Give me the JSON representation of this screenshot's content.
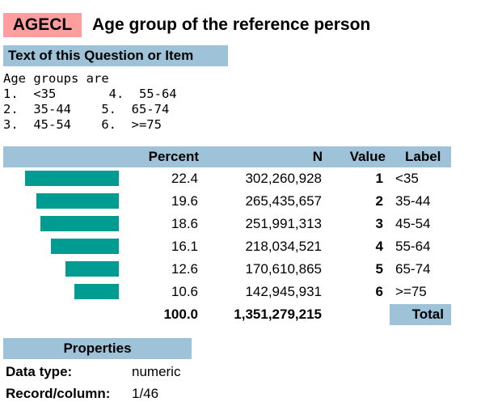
{
  "variable": {
    "code": "AGECL",
    "title": "Age group of the reference person"
  },
  "question": {
    "heading": "Text of this Question or Item",
    "lines": [
      "Age groups are",
      "1.  <35       4.  55-64",
      "2.  35-44    5.  65-74",
      "3.  45-54    6.  >=75"
    ]
  },
  "table": {
    "headers": {
      "percent": "Percent",
      "n": "N",
      "value": "Value",
      "label": "Label"
    },
    "rows": [
      {
        "percent": "22.4",
        "percent_num": 22.4,
        "n": "302,260,928",
        "value": "1",
        "label": "<35"
      },
      {
        "percent": "19.6",
        "percent_num": 19.6,
        "n": "265,435,657",
        "value": "2",
        "label": "35-44"
      },
      {
        "percent": "18.6",
        "percent_num": 18.6,
        "n": "251,991,313",
        "value": "3",
        "label": "45-54"
      },
      {
        "percent": "16.1",
        "percent_num": 16.1,
        "n": "218,034,521",
        "value": "4",
        "label": "55-64"
      },
      {
        "percent": "12.6",
        "percent_num": 12.6,
        "n": "170,610,865",
        "value": "5",
        "label": "65-74"
      },
      {
        "percent": "10.6",
        "percent_num": 10.6,
        "n": "142,945,931",
        "value": "6",
        "label": ">=75"
      }
    ],
    "total": {
      "percent": "100.0",
      "n": "1,351,279,215",
      "label": "Total"
    },
    "bar_color": "#009b91"
  },
  "properties": {
    "heading": "Properties",
    "data_type_label": "Data type:",
    "data_type_value": "numeric",
    "record_label": "Record/column:",
    "record_value": "1/46"
  }
}
